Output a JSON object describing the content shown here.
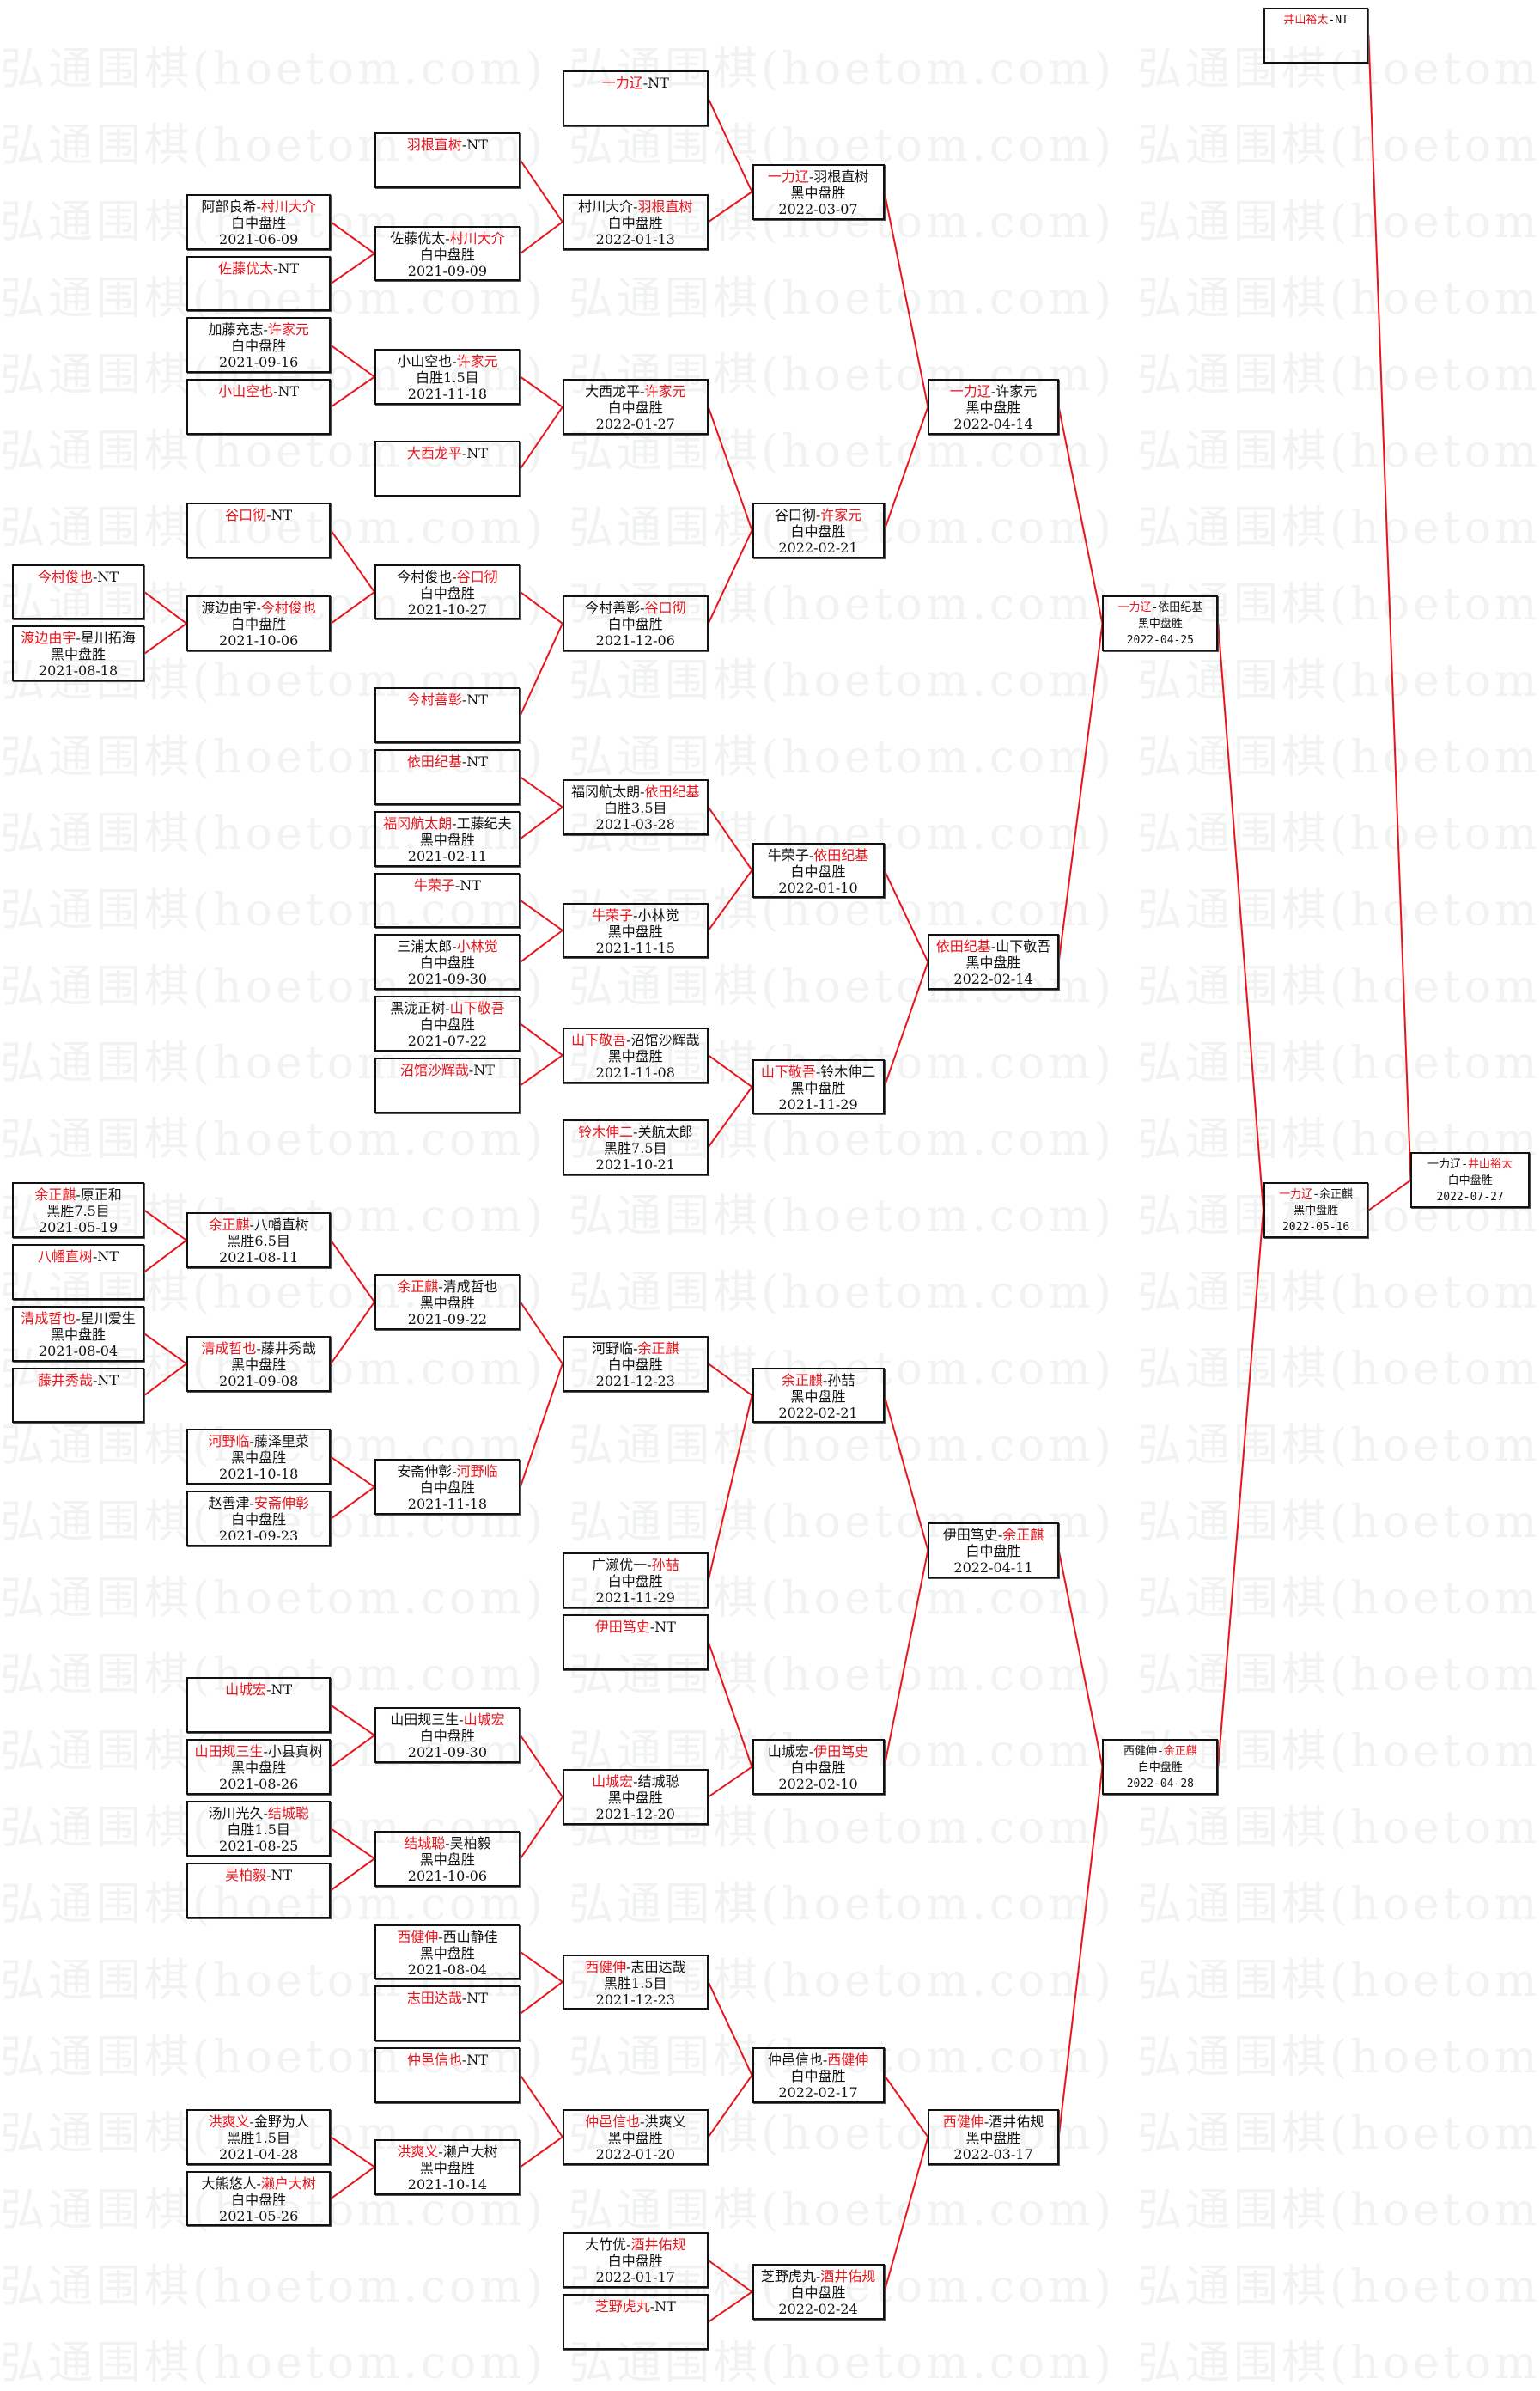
{
  "watermark": "弘通围棋(hoetom.com)",
  "colors": {
    "winner": "#e8141b",
    "connector": "#e8141b",
    "border": "#111111"
  },
  "matches": [
    {
      "id": "a1",
      "players": [
        "今村俊也",
        "NT"
      ],
      "winner": 0,
      "result": "",
      "date": "",
      "next": "b6"
    },
    {
      "id": "a2",
      "players": [
        "渡边由宇",
        "星川拓海"
      ],
      "winner": 0,
      "result": "黑中盘胜",
      "date": "2021-08-18",
      "next": "b6"
    },
    {
      "id": "a3",
      "players": [
        "余正麒",
        "原正和"
      ],
      "winner": 0,
      "result": "黑胜7.5目",
      "date": "2021-05-19",
      "next": "b7"
    },
    {
      "id": "a4",
      "players": [
        "八幡直树",
        "NT"
      ],
      "winner": 0,
      "result": "",
      "date": "",
      "next": "b7"
    },
    {
      "id": "a5",
      "players": [
        "清成哲也",
        "星川爱生"
      ],
      "winner": 0,
      "result": "黑中盘胜",
      "date": "2021-08-04",
      "next": "b8"
    },
    {
      "id": "a6",
      "players": [
        "藤井秀哉",
        "NT"
      ],
      "winner": 0,
      "result": "",
      "date": "",
      "next": "b8"
    },
    {
      "id": "b1",
      "players": [
        "阿部良希",
        "村川大介"
      ],
      "winner": 1,
      "result": "白中盘胜",
      "date": "2021-06-09",
      "next": "c2"
    },
    {
      "id": "b2",
      "players": [
        "佐藤优太",
        "NT"
      ],
      "winner": 0,
      "result": "",
      "date": "",
      "next": "c2"
    },
    {
      "id": "b3",
      "players": [
        "加藤充志",
        "许家元"
      ],
      "winner": 1,
      "result": "白中盘胜",
      "date": "2021-09-16",
      "next": "c3"
    },
    {
      "id": "b4",
      "players": [
        "小山空也",
        "NT"
      ],
      "winner": 0,
      "result": "",
      "date": "",
      "next": "c3"
    },
    {
      "id": "b5",
      "players": [
        "谷口彻",
        "NT"
      ],
      "winner": 0,
      "result": "",
      "date": "",
      "next": "c5"
    },
    {
      "id": "b6",
      "players": [
        "渡边由宇",
        "今村俊也"
      ],
      "winner": 1,
      "result": "白中盘胜",
      "date": "2021-10-06",
      "next": "c5"
    },
    {
      "id": "b7",
      "players": [
        "余正麒",
        "八幡直树"
      ],
      "winner": 0,
      "result": "黑胜6.5目",
      "date": "2021-08-11",
      "next": "c13"
    },
    {
      "id": "b8",
      "players": [
        "清成哲也",
        "藤井秀哉"
      ],
      "winner": 0,
      "result": "黑中盘胜",
      "date": "2021-09-08",
      "next": "c13"
    },
    {
      "id": "b9",
      "players": [
        "河野临",
        "藤泽里菜"
      ],
      "winner": 0,
      "result": "黑中盘胜",
      "date": "2021-10-18",
      "next": "c14"
    },
    {
      "id": "b10",
      "players": [
        "赵善津",
        "安斋伸彰"
      ],
      "winner": 1,
      "result": "白中盘胜",
      "date": "2021-09-23",
      "next": "c14"
    },
    {
      "id": "b11",
      "players": [
        "山城宏",
        "NT"
      ],
      "winner": 0,
      "result": "",
      "date": "",
      "next": "c15"
    },
    {
      "id": "b12",
      "players": [
        "山田规三生",
        "小县真树"
      ],
      "winner": 0,
      "result": "黑中盘胜",
      "date": "2021-08-26",
      "next": "c15"
    },
    {
      "id": "b13",
      "players": [
        "汤川光久",
        "结城聪"
      ],
      "winner": 1,
      "result": "白胜1.5目",
      "date": "2021-08-25",
      "next": "c16"
    },
    {
      "id": "b14",
      "players": [
        "吴柏毅",
        "NT"
      ],
      "winner": 0,
      "result": "",
      "date": "",
      "next": "c16"
    },
    {
      "id": "b15",
      "players": [
        "洪爽义",
        "金野为人"
      ],
      "winner": 0,
      "result": "黑胜1.5目",
      "date": "2021-04-28",
      "next": "c20"
    },
    {
      "id": "b16",
      "players": [
        "大熊悠人",
        "濑户大树"
      ],
      "winner": 1,
      "result": "白中盘胜",
      "date": "2021-05-26",
      "next": "c20"
    },
    {
      "id": "c1",
      "players": [
        "羽根直树",
        "NT"
      ],
      "winner": 0,
      "result": "",
      "date": "",
      "next": "d2"
    },
    {
      "id": "c2",
      "players": [
        "佐藤优太",
        "村川大介"
      ],
      "winner": 1,
      "result": "白中盘胜",
      "date": "2021-09-09",
      "next": "d2"
    },
    {
      "id": "c3",
      "players": [
        "小山空也",
        "许家元"
      ],
      "winner": 1,
      "result": "白胜1.5目",
      "date": "2021-11-18",
      "next": "d3"
    },
    {
      "id": "c4",
      "players": [
        "大西龙平",
        "NT"
      ],
      "winner": 0,
      "result": "",
      "date": "",
      "next": "d3"
    },
    {
      "id": "c5",
      "players": [
        "今村俊也",
        "谷口彻"
      ],
      "winner": 1,
      "result": "白中盘胜",
      "date": "2021-10-27",
      "next": "d4"
    },
    {
      "id": "c6",
      "players": [
        "今村善彰",
        "NT"
      ],
      "winner": 0,
      "result": "",
      "date": "",
      "next": "d4"
    },
    {
      "id": "c7",
      "players": [
        "依田纪基",
        "NT"
      ],
      "winner": 0,
      "result": "",
      "date": "",
      "next": "d5"
    },
    {
      "id": "c8",
      "players": [
        "福冈航太朗",
        "工藤纪夫"
      ],
      "winner": 0,
      "result": "黑中盘胜",
      "date": "2021-02-11",
      "next": "d5"
    },
    {
      "id": "c9",
      "players": [
        "牛荣子",
        "NT"
      ],
      "winner": 0,
      "result": "",
      "date": "",
      "next": "d6"
    },
    {
      "id": "c10",
      "players": [
        "三浦太郎",
        "小林觉"
      ],
      "winner": 1,
      "result": "白中盘胜",
      "date": "2021-09-30",
      "next": "d6"
    },
    {
      "id": "c11",
      "players": [
        "黑泷正树",
        "山下敬吾"
      ],
      "winner": 1,
      "result": "白中盘胜",
      "date": "2021-07-22",
      "next": "d7"
    },
    {
      "id": "c12",
      "players": [
        "沼馆沙辉哉",
        "NT"
      ],
      "winner": 0,
      "result": "",
      "date": "",
      "next": "d7"
    },
    {
      "id": "c13",
      "players": [
        "余正麒",
        "清成哲也"
      ],
      "winner": 0,
      "result": "黑中盘胜",
      "date": "2021-09-22",
      "next": "d9"
    },
    {
      "id": "c14",
      "players": [
        "安斋伸彰",
        "河野临"
      ],
      "winner": 1,
      "result": "白中盘胜",
      "date": "2021-11-18",
      "next": "d9"
    },
    {
      "id": "c15",
      "players": [
        "山田规三生",
        "山城宏"
      ],
      "winner": 1,
      "result": "白中盘胜",
      "date": "2021-09-30",
      "next": "d12"
    },
    {
      "id": "c16",
      "players": [
        "结城聪",
        "吴柏毅"
      ],
      "winner": 0,
      "result": "黑中盘胜",
      "date": "2021-10-06",
      "next": "d12"
    },
    {
      "id": "c17",
      "players": [
        "西健伸",
        "西山静佳"
      ],
      "winner": 0,
      "result": "黑中盘胜",
      "date": "2021-08-04",
      "next": "d13"
    },
    {
      "id": "c18",
      "players": [
        "志田达哉",
        "NT"
      ],
      "winner": 0,
      "result": "",
      "date": "",
      "next": "d13"
    },
    {
      "id": "c19",
      "players": [
        "仲邑信也",
        "NT"
      ],
      "winner": 0,
      "result": "",
      "date": "",
      "next": "d14"
    },
    {
      "id": "c20",
      "players": [
        "洪爽义",
        "濑户大树"
      ],
      "winner": 0,
      "result": "黑中盘胜",
      "date": "2021-10-14",
      "next": "d14"
    },
    {
      "id": "d1",
      "players": [
        "一力辽",
        "NT"
      ],
      "winner": 0,
      "result": "",
      "date": "",
      "next": "e1"
    },
    {
      "id": "d2",
      "players": [
        "村川大介",
        "羽根直树"
      ],
      "winner": 1,
      "result": "白中盘胜",
      "date": "2022-01-13",
      "next": "e1"
    },
    {
      "id": "d3",
      "players": [
        "大西龙平",
        "许家元"
      ],
      "winner": 1,
      "result": "白中盘胜",
      "date": "2022-01-27",
      "next": "e2"
    },
    {
      "id": "d4",
      "players": [
        "今村善彰",
        "谷口彻"
      ],
      "winner": 1,
      "result": "白中盘胜",
      "date": "2021-12-06",
      "next": "e2"
    },
    {
      "id": "d5",
      "players": [
        "福冈航太朗",
        "依田纪基"
      ],
      "winner": 1,
      "result": "白胜3.5目",
      "date": "2021-03-28",
      "next": "e3"
    },
    {
      "id": "d6",
      "players": [
        "牛荣子",
        "小林觉"
      ],
      "winner": 0,
      "result": "黑中盘胜",
      "date": "2021-11-15",
      "next": "e3"
    },
    {
      "id": "d7",
      "players": [
        "山下敬吾",
        "沼馆沙辉哉"
      ],
      "winner": 0,
      "result": "黑中盘胜",
      "date": "2021-11-08",
      "next": "e4"
    },
    {
      "id": "d8",
      "players": [
        "铃木伸二",
        "关航太郎"
      ],
      "winner": 0,
      "result": "黑胜7.5目",
      "date": "2021-10-21",
      "next": "e4"
    },
    {
      "id": "d9",
      "players": [
        "河野临",
        "余正麒"
      ],
      "winner": 1,
      "result": "白中盘胜",
      "date": "2021-12-23",
      "next": "e5"
    },
    {
      "id": "d10",
      "players": [
        "广濑优一",
        "孙喆"
      ],
      "winner": 1,
      "result": "白中盘胜",
      "date": "2021-11-29",
      "next": "e5"
    },
    {
      "id": "d11",
      "players": [
        "伊田笃史",
        "NT"
      ],
      "winner": 0,
      "result": "",
      "date": "",
      "next": "e6"
    },
    {
      "id": "d12",
      "players": [
        "山城宏",
        "结城聪"
      ],
      "winner": 0,
      "result": "黑中盘胜",
      "date": "2021-12-20",
      "next": "e6"
    },
    {
      "id": "d13",
      "players": [
        "西健伸",
        "志田达哉"
      ],
      "winner": 0,
      "result": "黑胜1.5目",
      "date": "2021-12-23",
      "next": "e7"
    },
    {
      "id": "d14",
      "players": [
        "仲邑信也",
        "洪爽义"
      ],
      "winner": 0,
      "result": "黑中盘胜",
      "date": "2022-01-20",
      "next": "e7"
    },
    {
      "id": "d15",
      "players": [
        "大竹优",
        "酒井佑规"
      ],
      "winner": 1,
      "result": "白中盘胜",
      "date": "2022-01-17",
      "next": "e8"
    },
    {
      "id": "d16",
      "players": [
        "芝野虎丸",
        "NT"
      ],
      "winner": 0,
      "result": "",
      "date": "",
      "next": "e8"
    },
    {
      "id": "e1",
      "players": [
        "一力辽",
        "羽根直树"
      ],
      "winner": 0,
      "result": "黑中盘胜",
      "date": "2022-03-07",
      "next": "f1"
    },
    {
      "id": "e2",
      "players": [
        "谷口彻",
        "许家元"
      ],
      "winner": 1,
      "result": "白中盘胜",
      "date": "2022-02-21",
      "next": "f1"
    },
    {
      "id": "e3",
      "players": [
        "牛荣子",
        "依田纪基"
      ],
      "winner": 1,
      "result": "白中盘胜",
      "date": "2022-01-10",
      "next": "f2"
    },
    {
      "id": "e4",
      "players": [
        "山下敬吾",
        "铃木伸二"
      ],
      "winner": 0,
      "result": "黑中盘胜",
      "date": "2021-11-29",
      "next": "f2"
    },
    {
      "id": "e5",
      "players": [
        "余正麒",
        "孙喆"
      ],
      "winner": 0,
      "result": "黑中盘胜",
      "date": "2022-02-21",
      "next": "f3"
    },
    {
      "id": "e6",
      "players": [
        "山城宏",
        "伊田笃史"
      ],
      "winner": 1,
      "result": "白中盘胜",
      "date": "2022-02-10",
      "next": "f3"
    },
    {
      "id": "e7",
      "players": [
        "仲邑信也",
        "西健伸"
      ],
      "winner": 1,
      "result": "白中盘胜",
      "date": "2022-02-17",
      "next": "f4"
    },
    {
      "id": "e8",
      "players": [
        "芝野虎丸",
        "酒井佑规"
      ],
      "winner": 1,
      "result": "白中盘胜",
      "date": "2022-02-24",
      "next": "f4"
    },
    {
      "id": "f1",
      "players": [
        "一力辽",
        "许家元"
      ],
      "winner": 0,
      "result": "黑中盘胜",
      "date": "2022-04-14",
      "next": "g1"
    },
    {
      "id": "f2",
      "players": [
        "依田纪基",
        "山下敬吾"
      ],
      "winner": 0,
      "result": "黑中盘胜",
      "date": "2022-02-14",
      "next": "g1"
    },
    {
      "id": "f3",
      "players": [
        "伊田笃史",
        "余正麒"
      ],
      "winner": 1,
      "result": "白中盘胜",
      "date": "2022-04-11",
      "next": "g2"
    },
    {
      "id": "f4",
      "players": [
        "西健伸",
        "酒井佑规"
      ],
      "winner": 0,
      "result": "黑中盘胜",
      "date": "2022-03-17",
      "next": "g2"
    },
    {
      "id": "g1",
      "players": [
        "一力辽",
        "依田纪基"
      ],
      "winner": 0,
      "result": "黑中盘胜",
      "date": "2022-04-25",
      "next": "h2"
    },
    {
      "id": "g2",
      "players": [
        "西健伸",
        "余正麒"
      ],
      "winner": 1,
      "result": "白中盘胜",
      "date": "2022-04-28",
      "next": "h2"
    },
    {
      "id": "h1",
      "players": [
        "井山裕太",
        "NT"
      ],
      "winner": 0,
      "result": "",
      "date": "",
      "next": "i1"
    },
    {
      "id": "h2",
      "players": [
        "一力辽",
        "余正麒"
      ],
      "winner": 0,
      "result": "黑中盘胜",
      "date": "2022-05-16",
      "next": "i1"
    },
    {
      "id": "i1",
      "players": [
        "一力辽",
        "井山裕太"
      ],
      "winner": 1,
      "result": "白中盘胜",
      "date": "2022-07-27",
      "next": ""
    }
  ]
}
